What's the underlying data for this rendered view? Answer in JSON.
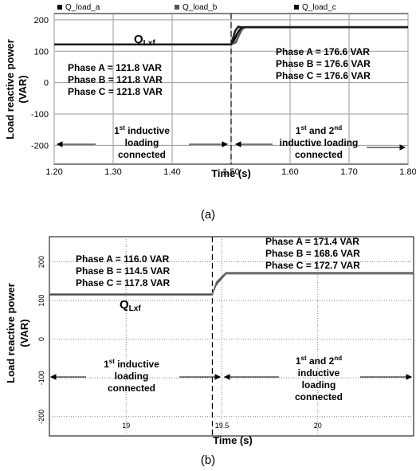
{
  "chart_data": [
    {
      "type": "line",
      "panel_label": "(a)",
      "xlabel": "Time (s)",
      "ylabel": "Load reactive power (VAR)",
      "xlim": [
        1.2,
        1.8
      ],
      "ylim": [
        -260,
        220
      ],
      "x_ticks": [
        "1.20",
        "1.30",
        "1.40",
        "1.50",
        "1.60",
        "1.70",
        "1.80"
      ],
      "y_ticks": [
        "200",
        "100",
        "0",
        "-100",
        "-200"
      ],
      "grid": true,
      "legend_position": "top",
      "event_time": 1.5,
      "series": [
        {
          "name": "Q_load_a",
          "color": "#000000",
          "x": [
            1.2,
            1.5,
            1.505,
            1.51,
            1.515,
            1.52,
            1.8
          ],
          "y": [
            121.8,
            121.8,
            135,
            155,
            170,
            176.6,
            176.6
          ]
        },
        {
          "name": "Q_load_b",
          "color": "#555555",
          "x": [
            1.2,
            1.5,
            1.508,
            1.513,
            1.518,
            1.523,
            1.8
          ],
          "y": [
            121.8,
            121.8,
            128,
            150,
            168,
            176.6,
            176.6
          ]
        },
        {
          "name": "Q_load_c",
          "color": "#1a1a1a",
          "x": [
            1.2,
            1.5,
            1.503,
            1.507,
            1.512,
            1.517,
            1.8
          ],
          "y": [
            121.8,
            121.8,
            140,
            165,
            178,
            176.6,
            176.6
          ]
        }
      ],
      "annotations": {
        "q_label": "Q",
        "q_sub": "Lxf",
        "before": [
          "Phase A = 121.8 VAR",
          "Phase B = 121.8 VAR",
          "Phase C = 121.8 VAR"
        ],
        "after": [
          "Phase A = 176.6 VAR",
          "Phase B = 176.6 VAR",
          "Phase C = 176.6 VAR"
        ],
        "region_left": {
          "line1_pre": "1",
          "line1_sup": "st",
          "line1_post": " inductive",
          "line2": "loading",
          "line3": "connected"
        },
        "region_right": {
          "line1_pre": "1",
          "line1_sup": "st",
          "line1_mid": " and 2",
          "line1_sup2": "nd",
          "line2": "inductive loading",
          "line3": "connected"
        }
      }
    },
    {
      "type": "line",
      "panel_label": "(b)",
      "xlabel": "Time (s)",
      "ylabel": "Load reactive power (VAR)",
      "xlim": [
        18.6,
        20.5
      ],
      "ylim": [
        -250,
        265
      ],
      "x_ticks": [
        "19",
        "19.5",
        "20"
      ],
      "y_ticks": [
        "200",
        "100",
        "0",
        "-100",
        "-200"
      ],
      "grid": true,
      "event_time": 19.45,
      "series": [
        {
          "x": [
            18.6,
            19.45,
            19.47,
            19.52,
            20.5
          ],
          "y": [
            116.0,
            116.0,
            145,
            171.4,
            171.4
          ],
          "color": "#222222"
        },
        {
          "x": [
            18.6,
            19.45,
            19.47,
            19.52,
            20.5
          ],
          "y": [
            114.5,
            114.5,
            140,
            168.6,
            168.6
          ],
          "color": "#555555"
        },
        {
          "x": [
            18.6,
            19.45,
            19.47,
            19.52,
            20.5
          ],
          "y": [
            117.8,
            117.8,
            148,
            172.7,
            172.7
          ],
          "color": "#888888"
        }
      ],
      "annotations": {
        "q_label": "Q",
        "q_sub": "Lxf",
        "before": [
          "Phase A = 116.0 VAR",
          "Phase B = 114.5 VAR",
          "Phase C = 117.8 VAR"
        ],
        "after": [
          "Phase A = 171.4 VAR",
          "Phase B = 168.6 VAR",
          "Phase C = 172.7 VAR"
        ],
        "region_left": {
          "line1_pre": "1",
          "line1_sup": "st",
          "line1_post": " inductive",
          "line2": "loading",
          "line3": "connected"
        },
        "region_right": {
          "line1_pre": "1",
          "line1_sup": "st",
          "line1_mid": " and 2",
          "line1_sup2": "nd",
          "line2": "inductive",
          "line3": "loading",
          "line4": "connected"
        }
      }
    }
  ]
}
